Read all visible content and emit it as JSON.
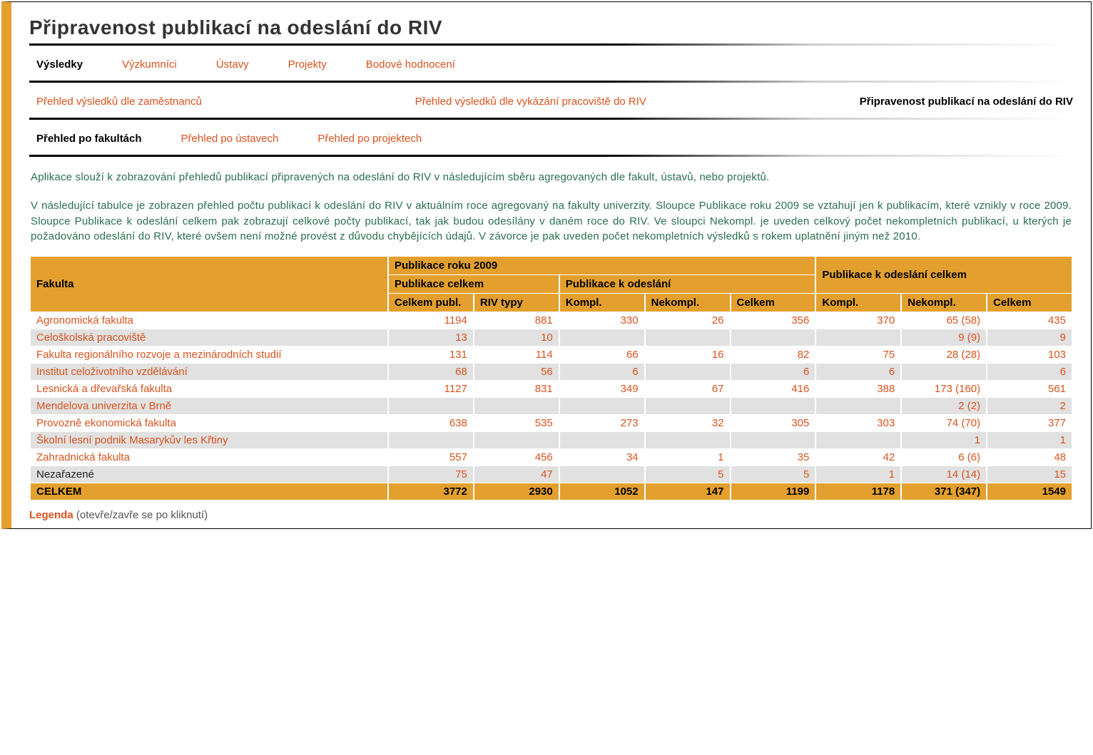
{
  "page_title": "Připravenost publikací na odeslání do RIV",
  "main_tabs": {
    "vysledky": "Výsledky",
    "vyzkumnici": "Výzkumníci",
    "ustavy": "Ústavy",
    "projekty": "Projekty",
    "bodove": "Bodové hodnocení"
  },
  "sub_tabs": {
    "prehled_zam": "Přehled výsledků dle zaměstnanců",
    "prehled_prac": "Přehled výsledků dle vykázání pracoviště do RIV",
    "pripravenost": "Připravenost publikací na odeslání do RIV"
  },
  "view_tabs": {
    "fakulty": "Přehled po fakultách",
    "ustavy": "Přehled po ústavech",
    "projekty": "Přehled po projektech"
  },
  "description_p1": "Aplikace slouží k zobrazování přehledů publikací připravených na odeslání do RIV v následujícím sběru agregovaných dle fakult, ústavů, nebo projektů.",
  "description_p2": "V následující tabulce je zobrazen přehled počtu publikací k odeslání do RIV v aktuálním roce agregovaný na fakulty univerzity. Sloupce Publikace roku 2009 se vztahují jen k publikacím, které vznikly v roce 2009. Sloupce Publikace k odeslání celkem pak zobrazují celkové počty publikací, tak jak budou odesílány v daném roce do RIV. Ve sloupci Nekompl. je uveden celkový počet nekompletních publikací, u kterých je požadováno odeslání do RIV, které ovšem není možné provést z důvodu chybějících údajů. V závorce je pak uveden počet nekompletních výsledků s rokem uplatnění jiným než 2010.",
  "table": {
    "headers": {
      "fakulta": "Fakulta",
      "pub2009": "Publikace roku 2009",
      "pub_celkem_grp": "Publikace celkem",
      "pub_odeslani_grp": "Publikace k odeslání",
      "pub_odeslani_celkem": "Publikace k odeslání celkem",
      "celkem_publ": "Celkem publ.",
      "riv_typy": "RIV typy",
      "kompl": "Kompl.",
      "nekompl": "Nekompl.",
      "celkem": "Celkem"
    },
    "rows": [
      {
        "name": "Agronomická fakulta",
        "link": true,
        "cp": "1194",
        "riv": "881",
        "k1": "330",
        "n1": "26",
        "c1": "356",
        "k2": "370",
        "n2": "65 (58)",
        "c2": "435"
      },
      {
        "name": "Celoškolská pracoviště",
        "link": true,
        "cp": "13",
        "riv": "10",
        "k1": "",
        "n1": "",
        "c1": "",
        "k2": "",
        "n2": "9 (9)",
        "c2": "9"
      },
      {
        "name": "Fakulta regionálního rozvoje a mezinárodních studií",
        "link": true,
        "cp": "131",
        "riv": "114",
        "k1": "66",
        "n1": "16",
        "c1": "82",
        "k2": "75",
        "n2": "28 (28)",
        "c2": "103"
      },
      {
        "name": "Institut celoživotního vzdělávání",
        "link": true,
        "cp": "68",
        "riv": "56",
        "k1": "6",
        "n1": "",
        "c1": "6",
        "k2": "6",
        "n2": "",
        "c2": "6"
      },
      {
        "name": "Lesnická a dřevařská fakulta",
        "link": true,
        "cp": "1127",
        "riv": "831",
        "k1": "349",
        "n1": "67",
        "c1": "416",
        "k2": "388",
        "n2": "173 (160)",
        "c2": "561"
      },
      {
        "name": "Mendelova univerzita v Brně",
        "link": true,
        "cp": "",
        "riv": "",
        "k1": "",
        "n1": "",
        "c1": "",
        "k2": "",
        "n2": "2 (2)",
        "c2": "2"
      },
      {
        "name": "Provozně ekonomická fakulta",
        "link": true,
        "cp": "638",
        "riv": "535",
        "k1": "273",
        "n1": "32",
        "c1": "305",
        "k2": "303",
        "n2": "74 (70)",
        "c2": "377"
      },
      {
        "name": "Školní lesní podnik Masarykův les Křtiny",
        "link": true,
        "cp": "",
        "riv": "",
        "k1": "",
        "n1": "",
        "c1": "",
        "k2": "",
        "n2": "1",
        "c2": "1"
      },
      {
        "name": "Zahradnická fakulta",
        "link": true,
        "cp": "557",
        "riv": "456",
        "k1": "34",
        "n1": "1",
        "c1": "35",
        "k2": "42",
        "n2": "6 (6)",
        "c2": "48"
      },
      {
        "name": "Nezařazené",
        "link": false,
        "cp": "75",
        "riv": "47",
        "k1": "",
        "n1": "5",
        "c1": "5",
        "k2": "1",
        "n2": "14 (14)",
        "c2": "15"
      }
    ],
    "total": {
      "name": "CELKEM",
      "cp": "3772",
      "riv": "2930",
      "k1": "1052",
      "n1": "147",
      "c1": "1199",
      "k2": "1178",
      "n2": "371 (347)",
      "c2": "1549"
    }
  },
  "legenda": {
    "label": "Legenda",
    "hint": "(otevře/zavře se po kliknutí)"
  },
  "colors": {
    "accent_orange": "#e3a02e",
    "link_orange": "#d9531e",
    "desc_green": "#2a6e4f",
    "row_alt": "#e1e1e1"
  }
}
